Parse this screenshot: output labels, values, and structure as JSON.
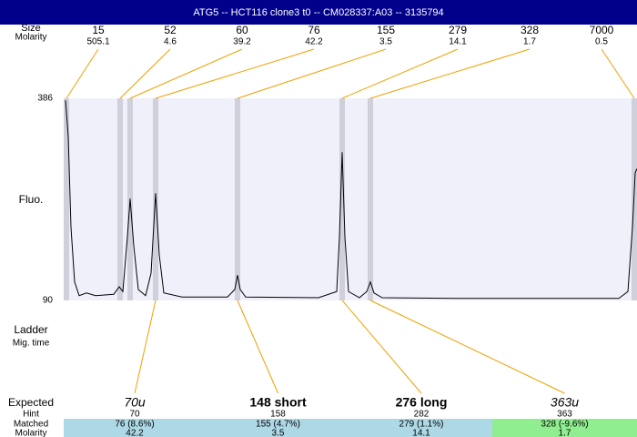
{
  "header": {
    "title": "ATG5 -- HCT116 clone3 t0 -- CM028337:A03 -- 3135794"
  },
  "ladder": {
    "size_label": "Size",
    "molarity_label": "Molarity",
    "sizes": [
      15,
      52,
      60,
      76,
      155,
      279,
      328,
      7000
    ],
    "molarities": [
      505.1,
      4.6,
      39.2,
      42.2,
      3.5,
      14.1,
      1.7,
      0.5
    ]
  },
  "chart_data": {
    "type": "line",
    "y_label": "Fluo.",
    "color": "#000000",
    "x": [
      72,
      75,
      78,
      82,
      87,
      95,
      105,
      125,
      131,
      135,
      140,
      143,
      147,
      152,
      160,
      166,
      171,
      175,
      180,
      200,
      250,
      258,
      261,
      264,
      270,
      350,
      370,
      373,
      376,
      379,
      383,
      395,
      403,
      407,
      411,
      420,
      500,
      600,
      680,
      690,
      695,
      698,
      700
    ],
    "values": [
      383,
      330,
      197,
      117,
      97,
      101,
      97,
      99,
      110,
      103,
      183,
      239,
      170,
      106,
      97,
      130,
      247,
      157,
      101,
      95,
      95,
      106,
      127,
      106,
      95,
      94,
      103,
      183,
      307,
      183,
      103,
      94,
      103,
      117,
      101,
      94,
      93,
      93,
      93,
      103,
      197,
      277,
      283
    ],
    "bands": [
      73,
      132,
      143,
      171,
      261,
      376,
      407,
      697
    ],
    "xlim": [
      70,
      700
    ],
    "ylim": [
      90,
      386
    ],
    "yticks": [
      90,
      386
    ]
  },
  "labels": {
    "ladder": "Ladder",
    "mig_time": "Mig. time"
  },
  "table": {
    "row_labels": [
      "Expected",
      "Hint",
      "Matched",
      "Molarity"
    ],
    "expected": [
      "70u",
      "148 short",
      "276 long",
      "363u"
    ],
    "hint": [
      70,
      158,
      282,
      363
    ],
    "matched": [
      "76 (8.6%)",
      "155 (4.7%)",
      "279 (1.1%)",
      "328 (-9.6%)"
    ],
    "molarity": [
      42.2,
      3.5,
      14.1,
      1.7
    ]
  }
}
